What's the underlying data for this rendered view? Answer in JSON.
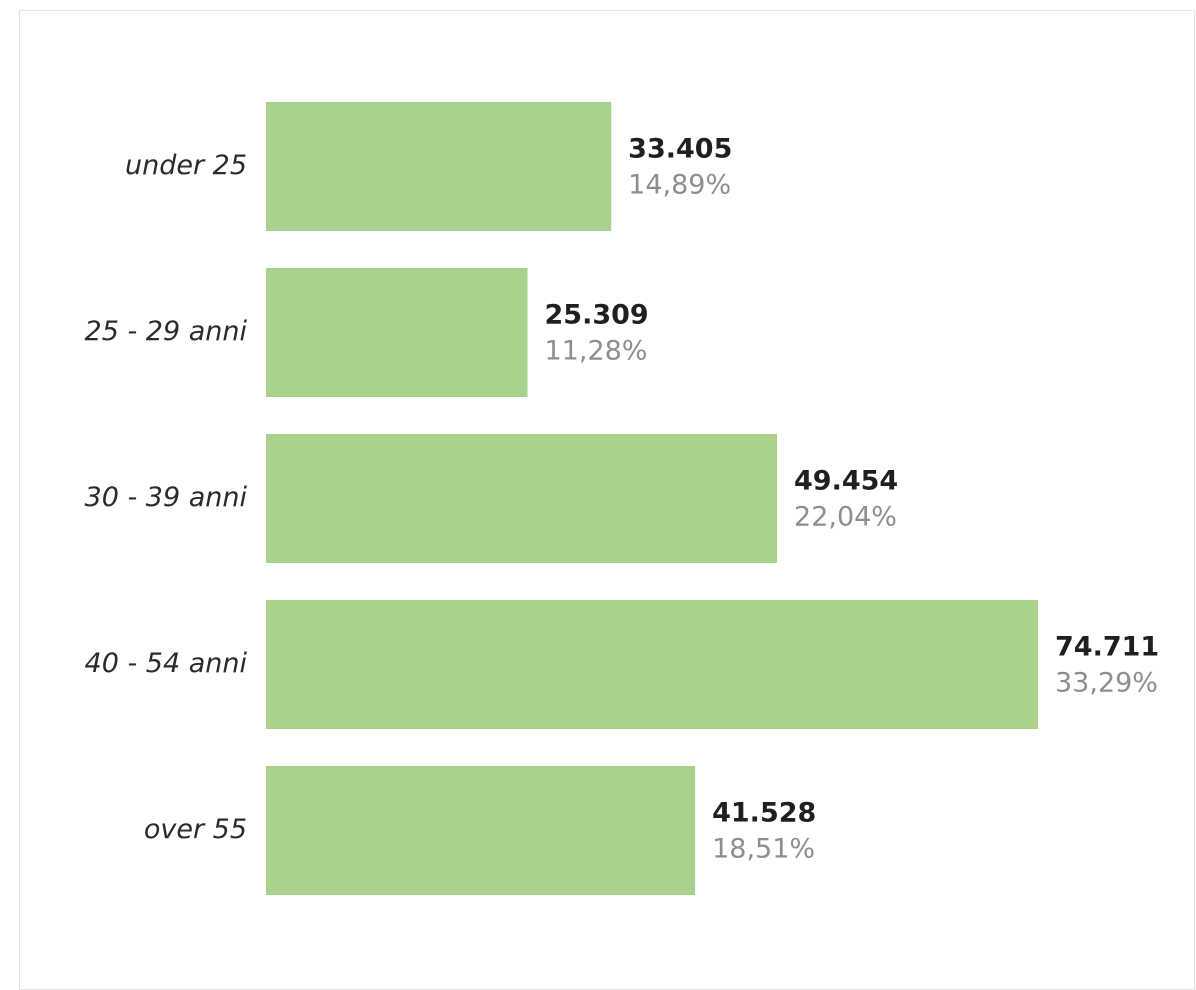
{
  "chart_data": {
    "type": "bar",
    "orientation": "horizontal",
    "categories": [
      "under 25",
      "25 - 29 anni",
      "30 - 39 anni",
      "40 - 54 anni",
      "over 55"
    ],
    "values": [
      33405,
      25309,
      49454,
      74711,
      41528
    ],
    "value_labels": [
      "33.405",
      "25.309",
      "49.454",
      "74.711",
      "41.528"
    ],
    "percent_labels": [
      "14,89%",
      "11,28%",
      "22,04%",
      "33,29%",
      "18,51%"
    ],
    "title": "",
    "xlabel": "",
    "ylabel": "",
    "xlim": [
      0,
      74711
    ],
    "grid": false,
    "legend": "none",
    "bar_color": "#a9d18e"
  }
}
